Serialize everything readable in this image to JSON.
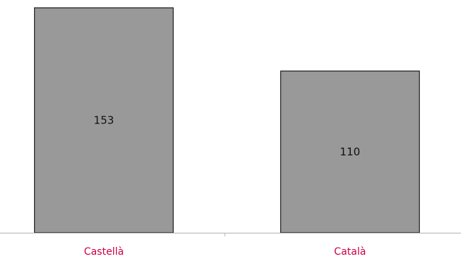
{
  "chart_data": {
    "type": "bar",
    "categories": [
      "Castellà",
      "Català"
    ],
    "values": [
      153,
      110
    ],
    "title": "",
    "xlabel": "",
    "ylabel": "",
    "ylim": [
      0,
      153
    ],
    "grid": false,
    "bar_color": "#999999",
    "bar_edge_color": "#1a1a1a",
    "category_label_color": "#cc0044",
    "axis_color": "#b3b3b3",
    "data_labels": true
  }
}
